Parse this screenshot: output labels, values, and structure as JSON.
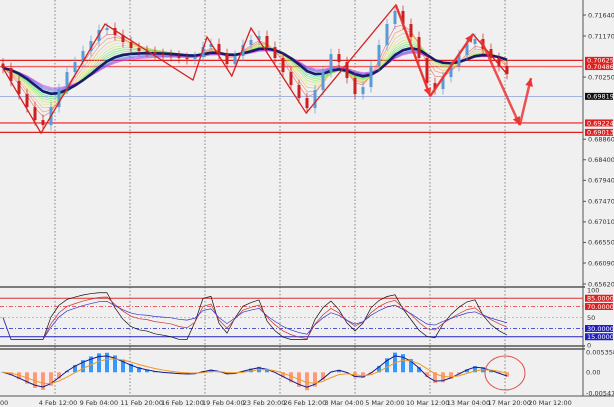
{
  "chart_data": {
    "type": "candlestick",
    "price_axis": {
      "range": [
        0.6562,
        0.7164
      ],
      "ticks": [
        "0.71640",
        "0.71170",
        "0.70250",
        "0.68860",
        "0.68400",
        "0.67940",
        "0.67470",
        "0.67010",
        "0.66550",
        "0.66090",
        "0.65620"
      ],
      "tick_values": [
        0.7164,
        0.7117,
        0.7025,
        0.6886,
        0.684,
        0.6794,
        0.6747,
        0.6701,
        0.6655,
        0.6609,
        0.6562
      ]
    },
    "closes": [
      0.70453,
      0.70162,
      0.6987,
      0.69579,
      0.69288,
      0.69176,
      0.69579,
      0.69982,
      0.70363,
      0.70587,
      0.70834,
      0.71058,
      0.71304,
      0.71349,
      0.71192,
      0.71035,
      0.70901,
      0.70834,
      0.70811,
      0.70766,
      0.70744,
      0.70722,
      0.70677,
      0.70654,
      0.70699,
      0.70923,
      0.7099,
      0.70766,
      0.70542,
      0.70722,
      0.70968,
      0.7108,
      0.7117,
      0.70923,
      0.70677,
      0.70363,
      0.70072,
      0.69781,
      0.69557,
      0.6996,
      0.70363,
      0.70766,
      0.70587,
      0.70229,
      0.6987,
      0.70027,
      0.70498,
      0.70968,
      0.71438,
      0.7173,
      0.71438,
      0.71147,
      0.70677,
      0.70117,
      0.69982,
      0.70251,
      0.70498,
      0.70744,
      0.7099,
      0.71102,
      0.70878,
      0.70677,
      0.70498,
      0.70318
    ],
    "levels": [
      {
        "label": "0.70625",
        "value": 0.70625,
        "color": "#e02020",
        "kind": "resistance"
      },
      {
        "label": "0.70486",
        "value": 0.70486,
        "color": "#f06060",
        "kind": "resistance"
      },
      {
        "label": "0.69819",
        "value": 0.69819,
        "color": "#8aa0d8",
        "kind": "current-price"
      },
      {
        "label": "0.69224",
        "value": 0.69224,
        "color": "#f04040",
        "kind": "support"
      },
      {
        "label": "0.69013",
        "value": 0.69013,
        "color": "#e02020",
        "kind": "support"
      }
    ],
    "zigzag": [
      [
        0,
        0.70453
      ],
      [
        4.75,
        0.68997
      ],
      [
        12.75,
        0.71438
      ],
      [
        23.75,
        0.70184
      ],
      [
        25.5,
        0.71147
      ],
      [
        28.6,
        0.70274
      ],
      [
        31,
        0.71349
      ],
      [
        37.9,
        0.69445
      ],
      [
        49.1,
        0.71864
      ],
      [
        53.4,
        0.69826
      ],
      [
        58.75,
        0.71214
      ],
      [
        63,
        0.70318
      ]
    ],
    "arrows": [
      [
        [
          49.1,
          0.71864
        ],
        [
          53.4,
          0.69826
        ]
      ],
      [
        [
          53.4,
          0.69826
        ],
        [
          58.75,
          0.71214
        ]
      ],
      [
        [
          59.75,
          0.7108
        ],
        [
          64.6,
          0.69176
        ]
      ],
      [
        [
          64.6,
          0.69176
        ],
        [
          66,
          0.70229
        ]
      ]
    ],
    "time_axis": [
      "00",
      "4 Feb 12:00",
      "9 Feb 04:00",
      "11 Feb 20:00",
      "16 Feb 12:00",
      "19 Feb 04:00",
      "23 Feb 20:00",
      "26 Feb 12:00",
      "3 Mar 04:00",
      "5 Mar 20:00",
      "10 Mar 12:00",
      "13 Mar 04:00",
      "17 Mar 20:00",
      "20 Mar 12:00"
    ],
    "rsi": {
      "axis_labels": [
        "100",
        "50",
        "0"
      ],
      "levels": [
        {
          "label": "85.0000",
          "value": 85,
          "color": "#e03030"
        },
        {
          "label": "70.0000",
          "value": 70,
          "color": "#e03030"
        },
        {
          "label": "30.0000",
          "value": 30,
          "color": "#2020c0"
        },
        {
          "label": "15.0000",
          "value": 15,
          "color": "#2020c0"
        }
      ]
    },
    "macd": {
      "axis_labels": [
        "0.0053585",
        "0.00",
        "-0.005475"
      ],
      "range": [
        -0.005475,
        0.0053585
      ],
      "positive_color": "#3399ff",
      "negative_color": "#ff9977"
    },
    "colors": {
      "ma_main": "#1a1a66",
      "up": "#5a9bd5",
      "down": "#cc2020",
      "annotation": "#ee3333"
    },
    "grid": "vertical-dotted"
  }
}
